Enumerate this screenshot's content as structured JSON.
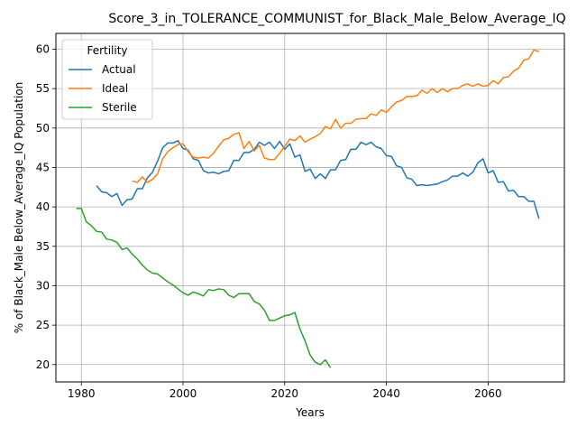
{
  "chart_data": {
    "type": "line",
    "title": "Score_3_in_TOLERANCE_COMMUNIST_for_Black_Male_Below_Average_IQ",
    "xlabel": "Years",
    "ylabel": "% of Black_Male Below_Average_IQ Population",
    "xlim": [
      1975,
      2075
    ],
    "ylim": [
      17.8,
      62.0
    ],
    "xticks": [
      1980,
      2000,
      2020,
      2040,
      2060
    ],
    "yticks": [
      20,
      25,
      30,
      35,
      40,
      45,
      50,
      55,
      60
    ],
    "grid": true,
    "legend": {
      "title": "Fertility",
      "placement": "upper-left"
    },
    "series": [
      {
        "name": "Actual",
        "color": "#1f77b4",
        "x": [
          1983,
          1984,
          1985,
          1986,
          1987,
          1988,
          1989,
          1990,
          1991,
          1992,
          1993,
          1994,
          1995,
          1996,
          1997,
          1998,
          1999,
          2000,
          2001,
          2002,
          2003,
          2004,
          2005,
          2006,
          2007,
          2008,
          2009,
          2010,
          2011,
          2012,
          2013,
          2014,
          2015,
          2016,
          2017,
          2018,
          2019,
          2020,
          2021,
          2022,
          2023,
          2024,
          2025,
          2026,
          2027,
          2028,
          2029,
          2030,
          2031,
          2032,
          2033,
          2034,
          2035,
          2036,
          2037,
          2038,
          2039,
          2040,
          2041,
          2042,
          2043,
          2044,
          2045,
          2046,
          2047,
          2048,
          2049,
          2050,
          2051,
          2052,
          2053,
          2054,
          2055,
          2056,
          2057,
          2058,
          2059,
          2060,
          2061,
          2062,
          2063,
          2064,
          2065,
          2066,
          2067,
          2068,
          2069,
          2070
        ],
        "values": [
          42.7,
          41.9,
          41.8,
          41.3,
          41.7,
          40.2,
          40.9,
          41.0,
          42.3,
          42.3,
          43.7,
          44.4,
          45.8,
          47.5,
          48.1,
          48.1,
          48.4,
          47.4,
          47.2,
          46.1,
          45.9,
          44.6,
          44.3,
          44.4,
          44.2,
          44.5,
          44.6,
          45.9,
          45.9,
          46.9,
          46.9,
          47.3,
          48.2,
          47.8,
          48.2,
          47.4,
          48.3,
          47.3,
          48.0,
          46.3,
          46.6,
          44.5,
          44.8,
          43.6,
          44.2,
          43.6,
          44.7,
          44.7,
          45.9,
          46.0,
          47.3,
          47.3,
          48.2,
          47.9,
          48.2,
          47.6,
          47.4,
          46.5,
          46.4,
          45.2,
          45.0,
          43.7,
          43.5,
          42.7,
          42.8,
          42.7,
          42.8,
          42.9,
          43.2,
          43.4,
          43.9,
          43.9,
          44.3,
          43.9,
          44.4,
          45.6,
          46.1,
          44.3,
          44.6,
          43.1,
          43.2,
          42.0,
          42.1,
          41.3,
          41.3,
          40.7,
          40.7,
          38.5
        ]
      },
      {
        "name": "Ideal",
        "color": "#ff7f0e",
        "x": [
          1990,
          1991,
          1992,
          1993,
          1994,
          1995,
          1996,
          1997,
          1998,
          1999,
          2000,
          2001,
          2002,
          2003,
          2004,
          2005,
          2006,
          2007,
          2008,
          2009,
          2010,
          2011,
          2012,
          2013,
          2014,
          2015,
          2016,
          2017,
          2018,
          2019,
          2020,
          2021,
          2022,
          2023,
          2024,
          2025,
          2026,
          2027,
          2028,
          2029,
          2030,
          2031,
          2032,
          2033,
          2034,
          2035,
          2036,
          2037,
          2038,
          2039,
          2040,
          2041,
          2042,
          2043,
          2044,
          2045,
          2046,
          2047,
          2048,
          2049,
          2050,
          2051,
          2052,
          2053,
          2054,
          2055,
          2056,
          2057,
          2058,
          2059,
          2060,
          2061,
          2062,
          2063,
          2064,
          2065,
          2066,
          2067,
          2068,
          2069,
          2070
        ],
        "values": [
          43.3,
          43.1,
          43.8,
          43.1,
          43.5,
          44.2,
          46.1,
          47.0,
          47.5,
          47.9,
          48.0,
          47.0,
          46.3,
          46.2,
          46.3,
          46.2,
          46.8,
          47.7,
          48.5,
          48.7,
          49.2,
          49.4,
          47.4,
          48.3,
          47.1,
          47.8,
          46.2,
          46.0,
          46.0,
          46.8,
          47.7,
          48.6,
          48.4,
          49.0,
          48.2,
          48.6,
          48.9,
          49.3,
          50.2,
          49.9,
          51.1,
          50.0,
          50.6,
          50.6,
          51.1,
          51.2,
          51.2,
          51.8,
          51.6,
          52.3,
          52.0,
          52.7,
          53.3,
          53.5,
          54.0,
          54.0,
          54.1,
          54.8,
          54.4,
          55.0,
          54.5,
          55.0,
          54.6,
          55.0,
          55.0,
          55.4,
          55.6,
          55.3,
          55.6,
          55.3,
          55.4,
          56.0,
          55.6,
          56.4,
          56.5,
          57.2,
          57.6,
          58.6,
          58.8,
          59.9,
          59.7
        ]
      },
      {
        "name": "Sterile",
        "color": "#2ca02c",
        "x": [
          1979,
          1980,
          1981,
          1982,
          1983,
          1984,
          1985,
          1986,
          1987,
          1988,
          1989,
          1990,
          1991,
          1992,
          1993,
          1994,
          1995,
          1996,
          1997,
          1998,
          1999,
          2000,
          2001,
          2002,
          2003,
          2004,
          2005,
          2006,
          2007,
          2008,
          2009,
          2010,
          2011,
          2012,
          2013,
          2014,
          2015,
          2016,
          2017,
          2018,
          2019,
          2020,
          2021,
          2022,
          2023,
          2024,
          2025,
          2026,
          2027,
          2028,
          2029
        ],
        "values": [
          39.8,
          39.8,
          38.1,
          37.6,
          36.9,
          36.8,
          35.9,
          35.8,
          35.5,
          34.6,
          34.8,
          34.0,
          33.4,
          32.6,
          32.0,
          31.6,
          31.5,
          31.0,
          30.5,
          30.1,
          29.6,
          29.1,
          28.8,
          29.2,
          29.0,
          28.7,
          29.5,
          29.4,
          29.6,
          29.5,
          28.8,
          28.5,
          29.0,
          29.0,
          29.0,
          28.0,
          27.7,
          26.9,
          25.6,
          25.6,
          25.9,
          26.2,
          26.3,
          26.6,
          24.5,
          23.0,
          21.2,
          20.3,
          20.0,
          20.6,
          19.6
        ]
      }
    ]
  }
}
